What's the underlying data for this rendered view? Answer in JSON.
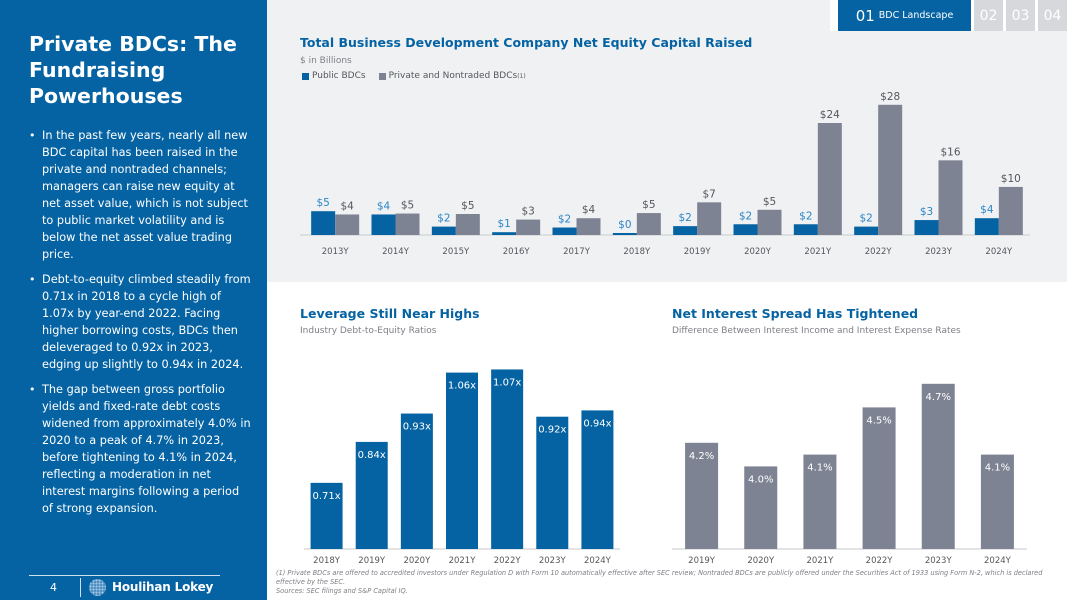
{
  "sidebar": {
    "title": "Private BDCs: The Fundraising Powerhouses",
    "bullets": [
      "In the past few years, nearly all new BDC capital has been raised in the private and nontraded channels; managers can raise new equity at net asset value, which is not subject to public market volatility and is below the net asset value trading price.",
      "Debt-to-equity climbed steadily from 0.71x in 2018 to a cycle high of 1.07x by year-end 2022. Facing higher borrowing costs, BDCs then deleveraged to 0.92x in 2023, edging up slightly to 0.94x in 2024.",
      "The gap between gross portfolio yields and fixed-rate debt costs widened from approximately 4.0% in 2020 to a peak of 4.7% in 2023, before tightening to 4.1% in 2024, reflecting a moderation in net interest margins following a period of strong expansion."
    ],
    "page_number": "4",
    "logo_text": "Houlihan Lokey"
  },
  "nav": {
    "active_number": "01",
    "active_label": "BDC Landscape",
    "tabs": [
      "02",
      "03",
      "04"
    ]
  },
  "colors": {
    "brand_blue": "#0563a3",
    "gray_bar": "#7d8392",
    "public_label": "#2a86c8",
    "private_label": "#55575c"
  },
  "footnote": {
    "line1": "(1) Private BDCs are offered to accredited investors under Regulation D with Form 10 automatically effective after SEC review; Nontraded BDCs are publicly offered under the Securities Act of 1933 using Form N-2, which is declared effective by the SEC.",
    "sources": "Sources: SEC filings and S&P Capital IQ."
  },
  "chart_data": [
    {
      "type": "bar",
      "title": "Total Business Development Company Net Equity Capital Raised",
      "subtitle": "$ in Billions",
      "xlabel": "",
      "ylabel": "",
      "legend_placement": "top-left",
      "categories": [
        "2013Y",
        "2014Y",
        "2015Y",
        "2016Y",
        "2017Y",
        "2018Y",
        "2019Y",
        "2020Y",
        "2021Y",
        "2022Y",
        "2023Y",
        "2024Y"
      ],
      "series": [
        {
          "name": "Public BDCs",
          "color": "#0563a3",
          "values": [
            5.1,
            4.4,
            1.8,
            0.6,
            1.6,
            0.4,
            1.9,
            2.3,
            2.3,
            1.8,
            3.2,
            3.6
          ],
          "labels": [
            "$5",
            "$4",
            "$2",
            "$1",
            "$2",
            "$0",
            "$2",
            "$2",
            "$2",
            "$2",
            "$3",
            "$4"
          ]
        },
        {
          "name": "Private and Nontraded BDCs",
          "superscript": "(1)",
          "color": "#7d8392",
          "values": [
            4.4,
            4.6,
            4.5,
            3.3,
            3.6,
            4.7,
            7.0,
            5.4,
            24.0,
            27.9,
            16.0,
            10.3
          ],
          "labels": [
            "$4",
            "$5",
            "$5",
            "$3",
            "$4",
            "$5",
            "$7",
            "$5",
            "$24",
            "$28",
            "$16",
            "$10"
          ]
        }
      ],
      "ylim": [
        0,
        30
      ],
      "grid": false
    },
    {
      "type": "bar",
      "title": "Leverage Still Near Highs",
      "subtitle": "Industry Debt-to-Equity Ratios",
      "categories": [
        "2018Y",
        "2019Y",
        "2020Y",
        "2021Y",
        "2022Y",
        "2023Y",
        "2024Y"
      ],
      "values": [
        0.71,
        0.84,
        0.93,
        1.06,
        1.07,
        0.92,
        0.94
      ],
      "labels": [
        "0.71x",
        "0.84x",
        "0.93x",
        "1.06x",
        "1.07x",
        "0.92x",
        "0.94x"
      ],
      "color": "#0563a3",
      "ylim": [
        0.5,
        1.1
      ],
      "grid": false
    },
    {
      "type": "bar",
      "title": "Net Interest Spread Has Tightened",
      "subtitle": "Difference Between Interest Income and Interest Expense Rates",
      "categories": [
        "2019Y",
        "2020Y",
        "2021Y",
        "2022Y",
        "2023Y",
        "2024Y"
      ],
      "values": [
        4.2,
        4.0,
        4.1,
        4.5,
        4.7,
        4.1
      ],
      "labels": [
        "4.2%",
        "4.0%",
        "4.1%",
        "4.5%",
        "4.7%",
        "4.1%"
      ],
      "color": "#7d8392",
      "ylim": [
        3.3,
        4.8
      ],
      "grid": false
    }
  ]
}
